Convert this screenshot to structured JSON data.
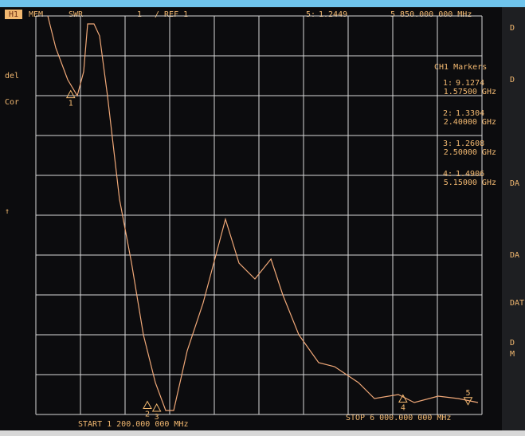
{
  "chart_data": {
    "type": "line",
    "channel": "H1",
    "mem": "MEM",
    "title": "SWR",
    "trace_number": "1",
    "reference": "/ REF 1",
    "active_marker": {
      "name": "5",
      "label": "5:",
      "value": 1.2449,
      "x": 5850,
      "x_label": "5 850.000 000 MHz"
    },
    "markers_title": "CH1 Markers",
    "markers": [
      {
        "name": "1",
        "label": "1:",
        "value": 9.1274,
        "x": 1575,
        "x_label": "1.57500 GHz"
      },
      {
        "name": "2",
        "label": "2:",
        "value": 1.3304,
        "x": 2400,
        "x_label": "2.40000 GHz"
      },
      {
        "name": "3",
        "label": "3:",
        "value": 1.2608,
        "x": 2500,
        "x_label": "2.50000 GHz"
      },
      {
        "name": "4",
        "label": "4:",
        "value": 1.4906,
        "x": 5150,
        "x_label": "5.15000 GHz"
      }
    ],
    "start_label": "START 1 200.000 000 MHz",
    "stop_label": "STOP 6 000.000 000 MHz",
    "left_softkeys": [
      "del",
      "Cor",
      "↑"
    ],
    "right_softkeys": [
      "D",
      "D",
      "DA",
      "DA",
      "DAT",
      "D",
      "M"
    ],
    "xlim": [
      1200,
      6000
    ],
    "ylim": [
      1,
      11
    ],
    "xticks": [
      1200,
      1680,
      2160,
      2640,
      3120,
      3600,
      4080,
      4560,
      5040,
      5520,
      6000
    ],
    "yticks": [
      1,
      2,
      3,
      4,
      5,
      6,
      7,
      8,
      9,
      10,
      11
    ],
    "grid": true,
    "series": [
      {
        "name": "SWR",
        "color": "#f0a878",
        "x": [
          1329,
          1414,
          1543,
          1646,
          1714,
          1757,
          1826,
          1886,
          1971,
          2100,
          2229,
          2357,
          2486,
          2597,
          2683,
          2829,
          3000,
          3240,
          3386,
          3557,
          3729,
          3857,
          4029,
          4243,
          4414,
          4671,
          4843,
          5100,
          5271,
          5529,
          5743,
          5957
        ],
        "values": [
          11,
          10.2,
          9.4,
          9,
          9.6,
          10.8,
          10.8,
          10.5,
          9,
          6.4,
          4.8,
          3,
          1.8,
          1.1,
          1.1,
          2.6,
          3.8,
          5.9,
          4.8,
          4.4,
          4.9,
          4,
          3,
          2.3,
          2.2,
          1.8,
          1.4,
          1.5,
          1.3,
          1.46,
          1.4,
          1.3
        ]
      }
    ]
  }
}
